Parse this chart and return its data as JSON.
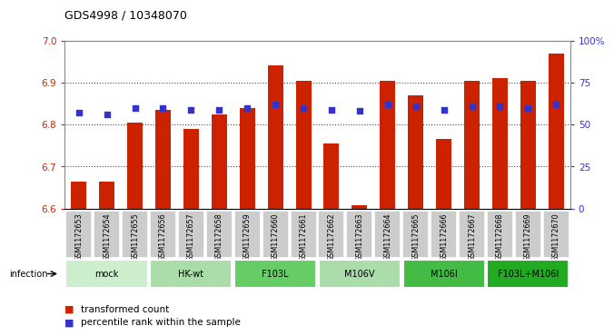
{
  "title": "GDS4998 / 10348070",
  "samples": [
    "GSM1172653",
    "GSM1172654",
    "GSM1172655",
    "GSM1172656",
    "GSM1172657",
    "GSM1172658",
    "GSM1172659",
    "GSM1172660",
    "GSM1172661",
    "GSM1172662",
    "GSM1172663",
    "GSM1172664",
    "GSM1172665",
    "GSM1172666",
    "GSM1172667",
    "GSM1172668",
    "GSM1172669",
    "GSM1172670"
  ],
  "bar_values": [
    6.665,
    6.665,
    6.805,
    6.835,
    6.79,
    6.825,
    6.84,
    6.94,
    6.905,
    6.755,
    6.608,
    6.905,
    6.87,
    6.765,
    6.905,
    6.91,
    6.905,
    6.97
  ],
  "percentile_values": [
    57,
    56,
    60,
    60,
    59,
    59,
    60,
    62,
    60,
    59,
    58,
    62,
    61,
    59,
    61,
    61,
    60,
    62
  ],
  "bar_color": "#cc2200",
  "dot_color": "#3333cc",
  "ylim_left": [
    6.6,
    7.0
  ],
  "ylim_right": [
    0,
    100
  ],
  "yticks_left": [
    6.6,
    6.7,
    6.8,
    6.9,
    7.0
  ],
  "yticks_right": [
    0,
    25,
    50,
    75,
    100
  ],
  "ytick_labels_right": [
    "0",
    "25",
    "50",
    "75",
    "100%"
  ],
  "groups": [
    {
      "label": "mock",
      "start": 0,
      "end": 2,
      "color": "#cceecc"
    },
    {
      "label": "HK-wt",
      "start": 3,
      "end": 5,
      "color": "#aaddaa"
    },
    {
      "label": "F103L",
      "start": 6,
      "end": 8,
      "color": "#66cc66"
    },
    {
      "label": "M106V",
      "start": 9,
      "end": 11,
      "color": "#aaddaa"
    },
    {
      "label": "M106I",
      "start": 12,
      "end": 14,
      "color": "#44bb44"
    },
    {
      "label": "F103L+M106I",
      "start": 15,
      "end": 17,
      "color": "#22aa22"
    }
  ],
  "infection_label": "infection",
  "legend_bar_label": "transformed count",
  "legend_dot_label": "percentile rank within the sample",
  "bar_width": 0.55,
  "tick_color_left": "#cc2200",
  "tick_color_right": "#3333cc",
  "sample_box_color": "#cccccc",
  "grid_linestyle": ":",
  "grid_linewidth": 0.8,
  "grid_color": "#444444"
}
